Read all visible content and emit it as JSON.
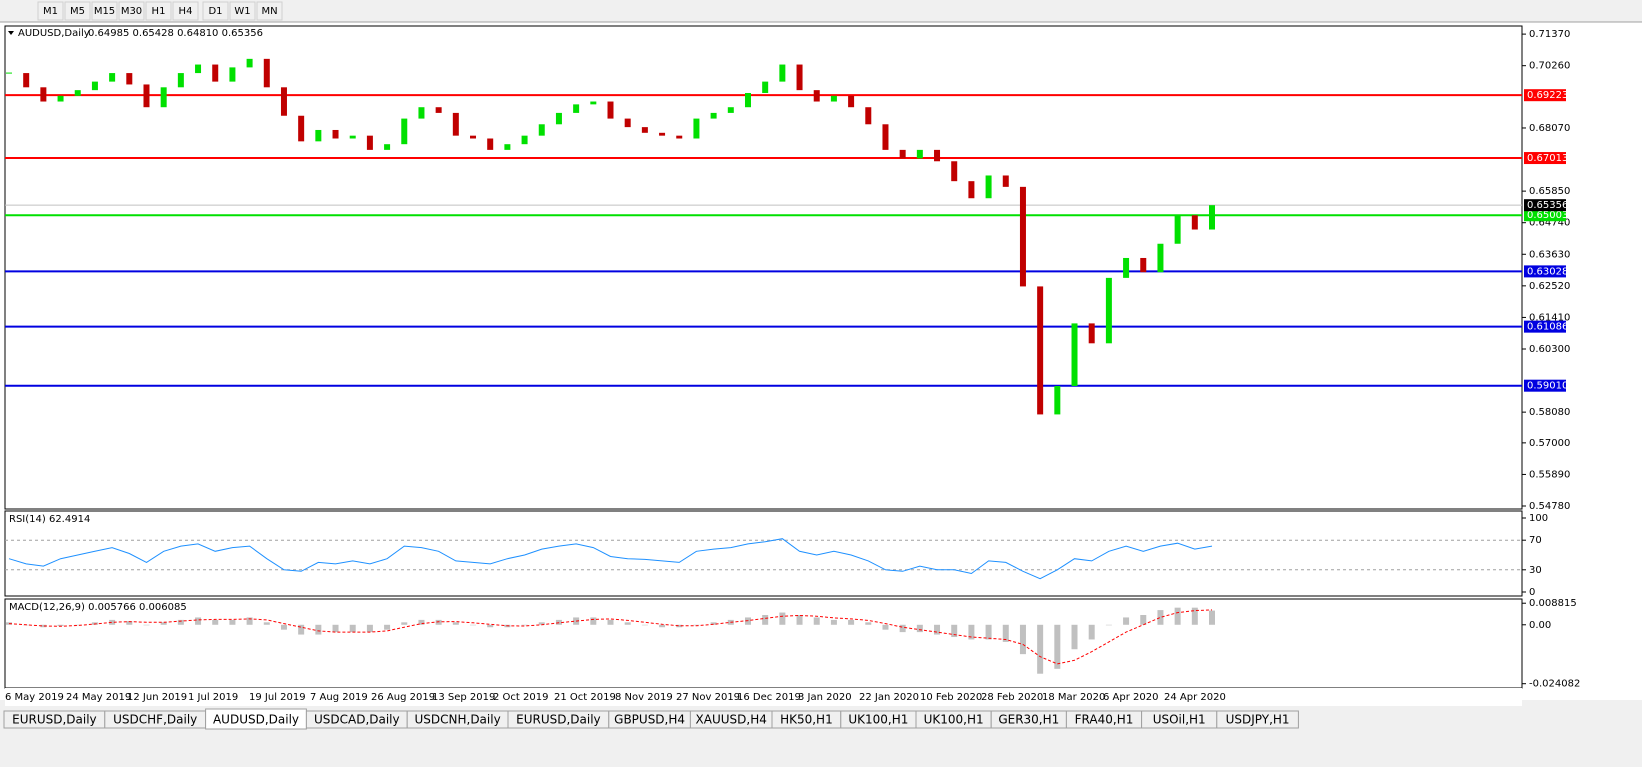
{
  "toolbar": {
    "timeframes": [
      "M1",
      "M5",
      "M15",
      "M30",
      "H1",
      "H4",
      "D1",
      "W1",
      "MN"
    ]
  },
  "chart_data": [
    {
      "type": "candlestick",
      "title": "AUDUSD,Daily",
      "quote": "0.64985 0.65428 0.64810 0.65356",
      "x_labels": [
        "6 May 2019",
        "24 May 2019",
        "12 Jun 2019",
        "1 Jul 2019",
        "19 Jul 2019",
        "7 Aug 2019",
        "26 Aug 2019",
        "13 Sep 2019",
        "2 Oct 2019",
        "21 Oct 2019",
        "8 Nov 2019",
        "27 Nov 2019",
        "16 Dec 2019",
        "3 Jan 2020",
        "22 Jan 2020",
        "10 Feb 2020",
        "28 Feb 2020",
        "18 Mar 2020",
        "6 Apr 2020",
        "24 Apr 2020"
      ],
      "values": [
        0.7,
        0.695,
        0.69,
        0.692,
        0.694,
        0.697,
        0.7,
        0.696,
        0.688,
        0.695,
        0.7,
        0.703,
        0.697,
        0.702,
        0.705,
        0.695,
        0.685,
        0.676,
        0.68,
        0.677,
        0.678,
        0.673,
        0.675,
        0.684,
        0.688,
        0.686,
        0.678,
        0.677,
        0.673,
        0.675,
        0.678,
        0.682,
        0.686,
        0.689,
        0.69,
        0.684,
        0.681,
        0.679,
        0.678,
        0.677,
        0.684,
        0.686,
        0.688,
        0.693,
        0.697,
        0.703,
        0.694,
        0.69,
        0.692,
        0.688,
        0.682,
        0.673,
        0.67,
        0.673,
        0.669,
        0.662,
        0.656,
        0.664,
        0.66,
        0.625,
        0.58,
        0.59,
        0.612,
        0.605,
        0.628,
        0.635,
        0.63,
        0.64,
        0.65,
        0.645,
        0.65356
      ],
      "up_color": "#00e000",
      "down_color": "#c00000",
      "ylim": [
        0.5471,
        0.7162
      ],
      "yticks": [
        {
          "value": 0.7137,
          "label": "0.71370"
        },
        {
          "value": 0.7026,
          "label": "0.70260"
        },
        {
          "value": 0.6807,
          "label": "0.68070"
        },
        {
          "value": 0.6585,
          "label": "0.65850"
        },
        {
          "value": 0.6474,
          "label": "0.64740"
        },
        {
          "value": 0.6363,
          "label": "0.63630"
        },
        {
          "value": 0.6252,
          "label": "0.62520"
        },
        {
          "value": 0.6141,
          "label": "0.61410"
        },
        {
          "value": 0.603,
          "label": "0.60300"
        },
        {
          "value": 0.5808,
          "label": "0.58080"
        },
        {
          "value": 0.57,
          "label": "0.57000"
        },
        {
          "value": 0.5589,
          "label": "0.55890"
        },
        {
          "value": 0.5478,
          "label": "0.54780"
        }
      ],
      "levels": [
        {
          "value": 0.69223,
          "color": "#ff0000"
        },
        {
          "value": 0.67013,
          "color": "#ff0000"
        },
        {
          "value": 0.65003,
          "color": "#00e000"
        },
        {
          "value": 0.63028,
          "color": "#0000e0"
        },
        {
          "value": 0.61086,
          "color": "#0000e0"
        },
        {
          "value": 0.5901,
          "label": "0.59010",
          "color": "#0000e0"
        }
      ],
      "last": 0.65356
    },
    {
      "type": "line",
      "title": "RSI(14) 62.4914",
      "color": "#1e90ff",
      "values": [
        45,
        38,
        35,
        45,
        50,
        55,
        60,
        52,
        40,
        55,
        62,
        65,
        55,
        60,
        62,
        45,
        30,
        28,
        40,
        38,
        42,
        38,
        45,
        62,
        60,
        55,
        42,
        40,
        38,
        45,
        50,
        58,
        62,
        65,
        60,
        48,
        45,
        44,
        42,
        40,
        55,
        58,
        60,
        65,
        68,
        72,
        55,
        50,
        55,
        50,
        42,
        30,
        28,
        35,
        30,
        30,
        25,
        42,
        40,
        28,
        18,
        30,
        45,
        42,
        55,
        62,
        55,
        62,
        66,
        58,
        62
      ],
      "ylim": [
        -5.4,
        108.1
      ],
      "yticks": [
        100,
        70,
        30,
        0
      ],
      "levels": [
        70,
        30
      ]
    },
    {
      "type": "macd",
      "title": "MACD(12,26,9) 0.005766 0.006085",
      "color": "#c0c0c0",
      "signal_color": "#ff0000",
      "values": [
        0.001,
        0,
        -0.001,
        -0.0005,
        0,
        0.001,
        0.002,
        0.0015,
        0,
        0.001,
        0.002,
        0.003,
        0.002,
        0.002,
        0.003,
        0.001,
        -0.002,
        -0.004,
        -0.004,
        -0.003,
        -0.003,
        -0.003,
        -0.002,
        0.001,
        0.002,
        0.002,
        0.001,
        0,
        -0.001,
        -0.001,
        0,
        0.001,
        0.002,
        0.003,
        0.003,
        0.002,
        0.001,
        0,
        -0.001,
        -0.001,
        0,
        0.001,
        0.002,
        0.003,
        0.004,
        0.005,
        0.004,
        0.003,
        0.002,
        0.002,
        0.001,
        -0.002,
        -0.003,
        -0.003,
        -0.004,
        -0.005,
        -0.006,
        -0.006,
        -0.007,
        -0.012,
        -0.02,
        -0.018,
        -0.01,
        -0.006,
        0,
        0.003,
        0.004,
        0.006,
        0.007,
        0.007,
        0.0058
      ],
      "signal": [
        0.0005,
        0,
        -0.0005,
        -0.0006,
        -0.0003,
        0.0003,
        0.001,
        0.0013,
        0.001,
        0.001,
        0.0015,
        0.002,
        0.0022,
        0.0022,
        0.0024,
        0.002,
        0.0005,
        -0.001,
        -0.0025,
        -0.003,
        -0.003,
        -0.003,
        -0.0025,
        -0.001,
        0.0005,
        0.0012,
        0.0013,
        0.0008,
        0.0002,
        -0.0004,
        -0.0005,
        0,
        0.0008,
        0.0015,
        0.0022,
        0.0024,
        0.0018,
        0.001,
        0.0002,
        -0.0004,
        -0.0004,
        0.0002,
        0.001,
        0.0017,
        0.0026,
        0.0035,
        0.0038,
        0.0035,
        0.0028,
        0.0024,
        0.0018,
        0.0005,
        -0.001,
        -0.002,
        -0.003,
        -0.004,
        -0.005,
        -0.0055,
        -0.006,
        -0.008,
        -0.013,
        -0.016,
        -0.0145,
        -0.011,
        -0.007,
        -0.003,
        0,
        0.003,
        0.005,
        0.0058,
        0.0061
      ],
      "ylim": [
        -0.02584,
        0.01013
      ],
      "yticks": [
        0.008815,
        {
          "value": 0,
          "label": "0.00"
        },
        -0.024082
      ]
    }
  ],
  "tabs": {
    "items": [
      "EURUSD,Daily",
      "USDCHF,Daily",
      "AUDUSD,Daily",
      "USDCAD,Daily",
      "USDCNH,Daily",
      "EURUSD,Daily",
      "GBPUSD,H4",
      "XAUUSD,H4",
      "HK50,H1",
      "UK100,H1",
      "UK100,H1",
      "GER30,H1",
      "FRA40,H1",
      "USOil,H1",
      "USDJPY,H1"
    ],
    "active": 2
  }
}
